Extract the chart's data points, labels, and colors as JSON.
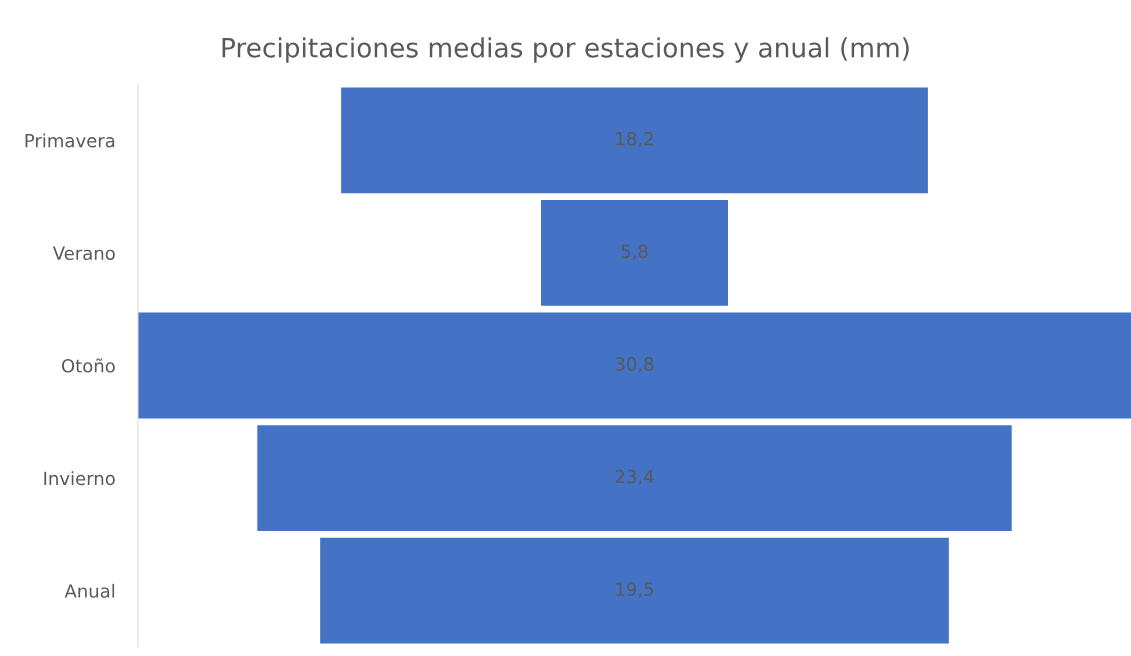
{
  "chart_data": {
    "type": "other",
    "title": "Precipitaciones medias por estaciones y anual (mm)",
    "categories": [
      "Primavera",
      "Verano",
      "Otoño",
      "Invierno",
      "Anual"
    ],
    "values": [
      18.2,
      5.8,
      30.8,
      23.4,
      19.5
    ],
    "value_labels": [
      "18,2",
      "5,8",
      "30,8",
      "23,4",
      "19,5"
    ],
    "color": "#4472c4"
  }
}
